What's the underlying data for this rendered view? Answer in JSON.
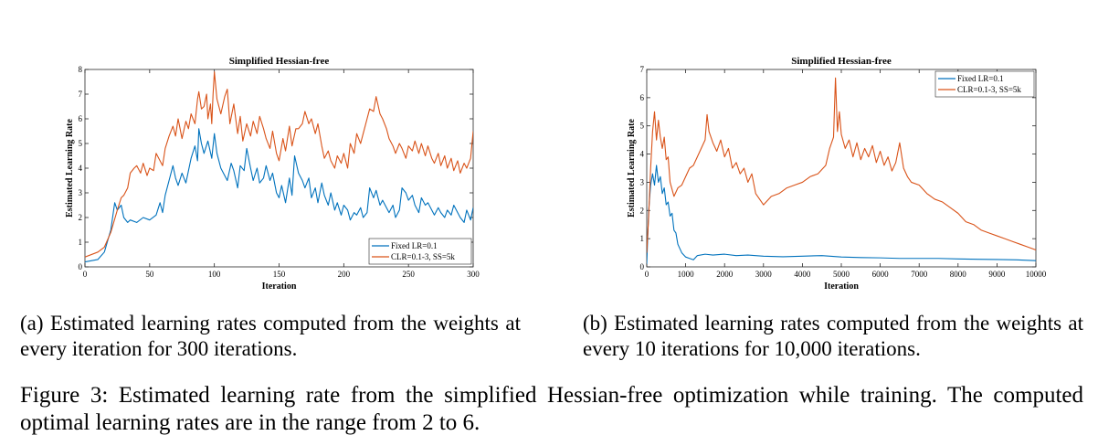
{
  "chart_data": [
    {
      "type": "line",
      "title": "Simplified Hessian-free",
      "xlabel": "Iteration",
      "ylabel": "Estimated Learning Rate",
      "xlim": [
        0,
        300
      ],
      "ylim": [
        0,
        8
      ],
      "xticks": [
        0,
        50,
        100,
        150,
        200,
        250,
        300
      ],
      "yticks": [
        0,
        1,
        2,
        3,
        4,
        5,
        6,
        7,
        8
      ],
      "grid": false,
      "legend_position": "bottom-right",
      "series": [
        {
          "name": "Fixed LR=0.1",
          "color": "#0072BD",
          "x": [
            0,
            10,
            15,
            20,
            23,
            25,
            28,
            30,
            33,
            35,
            40,
            45,
            50,
            55,
            58,
            60,
            62,
            65,
            68,
            70,
            72,
            75,
            78,
            80,
            82,
            85,
            87,
            88,
            90,
            92,
            95,
            98,
            100,
            102,
            105,
            108,
            110,
            113,
            115,
            118,
            120,
            123,
            125,
            128,
            130,
            133,
            135,
            138,
            140,
            143,
            145,
            148,
            150,
            152,
            155,
            158,
            160,
            162,
            165,
            168,
            170,
            173,
            175,
            178,
            180,
            183,
            185,
            188,
            190,
            193,
            195,
            198,
            200,
            203,
            205,
            208,
            210,
            213,
            215,
            218,
            220,
            223,
            225,
            228,
            230,
            233,
            235,
            238,
            240,
            243,
            245,
            248,
            250,
            253,
            255,
            258,
            260,
            263,
            265,
            268,
            270,
            273,
            275,
            278,
            280,
            283,
            285,
            288,
            290,
            293,
            295,
            298,
            300
          ],
          "y": [
            0.2,
            0.3,
            0.6,
            1.5,
            2.6,
            2.3,
            2.5,
            2.0,
            1.8,
            1.9,
            1.8,
            2.0,
            1.9,
            2.1,
            2.6,
            2.2,
            2.9,
            3.5,
            4.1,
            3.6,
            3.3,
            3.8,
            3.4,
            3.9,
            4.4,
            4.9,
            4.3,
            5.6,
            5.0,
            4.6,
            5.1,
            4.4,
            5.4,
            4.6,
            4.0,
            3.7,
            3.5,
            4.2,
            3.9,
            3.2,
            4.1,
            3.9,
            4.8,
            4.0,
            3.5,
            4.0,
            3.4,
            3.6,
            4.1,
            3.5,
            3.8,
            3.0,
            2.8,
            3.3,
            2.6,
            3.6,
            2.9,
            4.5,
            3.8,
            3.5,
            3.2,
            3.6,
            2.8,
            3.2,
            2.6,
            3.4,
            2.9,
            2.5,
            3.0,
            2.3,
            2.6,
            2.1,
            2.5,
            2.3,
            1.9,
            2.2,
            2.1,
            2.4,
            2.0,
            2.2,
            3.2,
            2.8,
            3.1,
            2.5,
            2.7,
            2.4,
            2.2,
            2.5,
            2.0,
            2.3,
            3.2,
            3.0,
            2.7,
            2.9,
            2.5,
            2.2,
            2.8,
            2.5,
            2.6,
            2.3,
            2.1,
            2.4,
            2.2,
            2.0,
            2.3,
            2.1,
            2.5,
            2.2,
            2.0,
            1.8,
            2.3,
            1.9,
            2.4
          ]
        },
        {
          "name": "CLR=0.1-3, SS=5k",
          "color": "#D95319",
          "x": [
            0,
            10,
            15,
            20,
            25,
            28,
            30,
            33,
            35,
            38,
            40,
            43,
            45,
            48,
            50,
            53,
            55,
            58,
            60,
            62,
            65,
            68,
            70,
            72,
            75,
            78,
            80,
            82,
            85,
            87,
            88,
            90,
            92,
            94,
            95,
            97,
            98,
            99,
            100,
            102,
            105,
            108,
            110,
            112,
            115,
            118,
            120,
            122,
            125,
            128,
            130,
            133,
            135,
            138,
            140,
            143,
            145,
            148,
            150,
            153,
            155,
            158,
            160,
            163,
            165,
            168,
            170,
            173,
            175,
            178,
            180,
            183,
            185,
            188,
            190,
            193,
            195,
            198,
            200,
            203,
            205,
            208,
            210,
            213,
            215,
            218,
            220,
            223,
            225,
            228,
            230,
            233,
            235,
            238,
            240,
            243,
            245,
            248,
            250,
            253,
            255,
            258,
            260,
            263,
            265,
            268,
            270,
            273,
            275,
            278,
            280,
            283,
            285,
            288,
            290,
            293,
            295,
            298,
            300
          ],
          "y": [
            0.4,
            0.6,
            0.8,
            1.4,
            2.3,
            2.8,
            2.9,
            3.2,
            3.8,
            4.0,
            4.1,
            3.8,
            4.2,
            3.7,
            4.0,
            3.9,
            4.6,
            4.3,
            4.1,
            4.8,
            5.3,
            5.7,
            5.3,
            6.0,
            5.2,
            5.9,
            5.6,
            6.2,
            5.8,
            6.8,
            7.1,
            6.4,
            6.5,
            7.0,
            6.0,
            6.6,
            5.8,
            7.0,
            7.9,
            6.8,
            6.2,
            6.9,
            7.2,
            5.8,
            6.6,
            5.4,
            6.1,
            5.1,
            5.8,
            5.3,
            5.9,
            5.4,
            6.1,
            5.6,
            5.2,
            4.8,
            5.5,
            4.6,
            4.3,
            5.2,
            4.7,
            5.7,
            4.9,
            5.6,
            5.6,
            5.8,
            6.3,
            5.8,
            6.0,
            5.4,
            5.8,
            4.9,
            4.4,
            4.7,
            4.3,
            4.0,
            4.5,
            4.2,
            4.6,
            4.0,
            5.0,
            4.6,
            5.4,
            5.0,
            5.4,
            6.0,
            6.4,
            6.3,
            6.9,
            6.2,
            6.0,
            5.6,
            5.2,
            4.9,
            4.6,
            5.0,
            4.8,
            4.4,
            4.9,
            4.7,
            5.1,
            4.6,
            5.0,
            4.5,
            4.9,
            4.4,
            4.2,
            4.6,
            4.1,
            4.5,
            4.0,
            4.4,
            3.9,
            4.3,
            3.8,
            4.2,
            4.0,
            4.4,
            5.5
          ]
        }
      ]
    },
    {
      "type": "line",
      "title": "Simplified Hessian-free",
      "xlabel": "Iteration",
      "ylabel": "Estimated Learning Rate",
      "xlim": [
        0,
        10000
      ],
      "ylim": [
        0,
        7
      ],
      "xticks": [
        0,
        1000,
        2000,
        3000,
        4000,
        5000,
        6000,
        7000,
        8000,
        9000,
        10000
      ],
      "yticks": [
        0,
        1,
        2,
        3,
        4,
        5,
        6,
        7
      ],
      "grid": false,
      "legend_position": "top-right",
      "series": [
        {
          "name": "Fixed LR=0.1",
          "color": "#0072BD",
          "x": [
            0,
            50,
            100,
            150,
            200,
            250,
            300,
            350,
            400,
            450,
            500,
            550,
            600,
            650,
            700,
            750,
            800,
            900,
            1000,
            1100,
            1200,
            1300,
            1500,
            1700,
            2000,
            2300,
            2600,
            3000,
            3500,
            4000,
            4500,
            5000,
            5500,
            6000,
            6500,
            7000,
            7500,
            8000,
            8500,
            9000,
            9500,
            10000
          ],
          "y": [
            0.1,
            2.0,
            2.9,
            3.3,
            2.9,
            3.6,
            3.0,
            3.2,
            2.6,
            2.8,
            2.2,
            2.3,
            1.8,
            1.9,
            1.3,
            1.2,
            0.8,
            0.5,
            0.35,
            0.3,
            0.25,
            0.4,
            0.45,
            0.42,
            0.45,
            0.4,
            0.42,
            0.38,
            0.36,
            0.38,
            0.4,
            0.35,
            0.33,
            0.32,
            0.3,
            0.3,
            0.3,
            0.28,
            0.27,
            0.26,
            0.25,
            0.22
          ]
        },
        {
          "name": "CLR=0.1-3, SS=5k",
          "color": "#D95319",
          "x": [
            0,
            50,
            100,
            150,
            200,
            250,
            300,
            350,
            400,
            450,
            500,
            550,
            600,
            700,
            800,
            900,
            1000,
            1100,
            1200,
            1300,
            1400,
            1500,
            1550,
            1600,
            1700,
            1800,
            1900,
            2000,
            2100,
            2200,
            2300,
            2400,
            2500,
            2600,
            2700,
            2800,
            2900,
            3000,
            3200,
            3400,
            3600,
            3800,
            4000,
            4200,
            4400,
            4600,
            4700,
            4800,
            4850,
            4900,
            4950,
            5000,
            5100,
            5200,
            5300,
            5400,
            5500,
            5600,
            5700,
            5800,
            5900,
            6000,
            6100,
            6200,
            6300,
            6400,
            6500,
            6600,
            6700,
            6800,
            7000,
            7200,
            7400,
            7600,
            7800,
            8000,
            8200,
            8400,
            8600,
            8800,
            9000,
            9200,
            9400,
            9600,
            9800,
            10000
          ],
          "y": [
            0.5,
            1.8,
            3.5,
            4.8,
            5.5,
            4.5,
            5.2,
            4.6,
            4.2,
            4.6,
            3.8,
            3.9,
            3.0,
            2.5,
            2.8,
            2.9,
            3.2,
            3.5,
            3.6,
            3.9,
            4.2,
            4.5,
            5.4,
            4.8,
            4.4,
            4.1,
            4.5,
            3.9,
            4.2,
            3.5,
            3.7,
            3.3,
            3.5,
            3.0,
            3.3,
            2.6,
            2.4,
            2.2,
            2.5,
            2.6,
            2.8,
            2.9,
            3.0,
            3.2,
            3.3,
            3.6,
            4.2,
            4.6,
            6.7,
            4.8,
            5.5,
            4.7,
            4.2,
            4.5,
            3.9,
            4.4,
            3.8,
            4.2,
            3.9,
            4.3,
            3.7,
            4.1,
            3.6,
            3.9,
            3.4,
            3.7,
            4.4,
            3.5,
            3.2,
            3.0,
            2.9,
            2.6,
            2.4,
            2.3,
            2.1,
            1.9,
            1.6,
            1.5,
            1.3,
            1.2,
            1.1,
            1.0,
            0.9,
            0.8,
            0.7,
            0.6
          ]
        }
      ]
    }
  ],
  "captions": {
    "a": "(a) Estimated learning rates computed from the weights at every iteration for 300 iterations.",
    "b": "(b) Estimated learning rates computed from the weights at every 10 iterations for 10,000 iterations.",
    "figure": "Figure 3: Estimated learning rate from the simplified Hessian-free optimization while training. The computed optimal learning rates are in the range from 2 to 6."
  }
}
